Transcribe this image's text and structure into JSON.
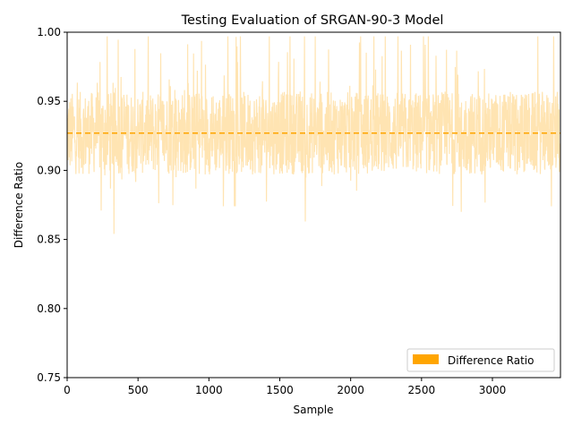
{
  "chart_data": {
    "type": "line",
    "title": "Testing Evaluation of SRGAN-90-3 Model",
    "xlabel": "Sample",
    "ylabel": "Difference Ratio",
    "xlim": [
      0,
      3480
    ],
    "ylim": [
      0.75,
      1.0
    ],
    "xticks": [
      0,
      500,
      1000,
      1500,
      2000,
      2500,
      3000
    ],
    "yticks": [
      0.75,
      0.8,
      0.85,
      0.9,
      0.95,
      1.0
    ],
    "xtick_labels": [
      "0",
      "500",
      "1000",
      "1500",
      "2000",
      "2500",
      "3000"
    ],
    "ytick_labels": [
      "0.75",
      "0.80",
      "0.85",
      "0.90",
      "0.95",
      "1.00"
    ],
    "grid": false,
    "legend_position": "lower-right",
    "series": [
      {
        "name": "Difference Ratio",
        "color": "#ffa500",
        "line_alpha": 0.3,
        "n_samples": 3480,
        "value_range": [
          0.854,
          0.997
        ],
        "notable_points": [
          {
            "x": 330,
            "y": 0.854
          },
          {
            "x": 240,
            "y": 0.871
          },
          {
            "x": 1680,
            "y": 0.863
          },
          {
            "x": 2780,
            "y": 0.87
          },
          {
            "x": 1750,
            "y": 0.997
          }
        ]
      }
    ],
    "reference_line": {
      "style": "dashed",
      "color": "#ffa500",
      "y": 0.927
    }
  },
  "legend": {
    "label": "Difference Ratio",
    "swatch_color": "#ffa500"
  }
}
